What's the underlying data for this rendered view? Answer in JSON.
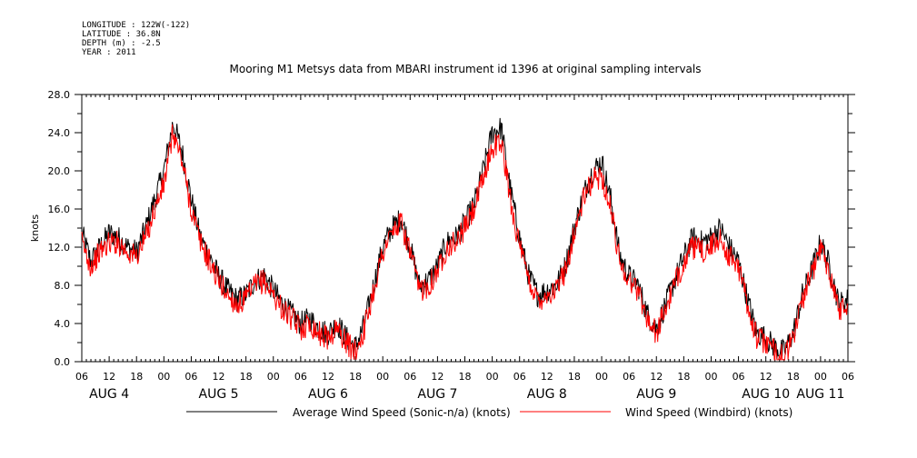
{
  "header": {
    "meta_lines": [
      "LONGITUDE : 122W(-122)",
      "LATITUDE : 36.8N",
      "DEPTH (m) : -2.5",
      "YEAR : 2011"
    ],
    "title": "Mooring M1 Metsys data from MBARI instrument id 1396 at original sampling intervals"
  },
  "chart_data": {
    "type": "line",
    "title": "Mooring M1 Metsys data from MBARI instrument id 1396 at original sampling intervals",
    "ylabel": "knots",
    "xlabel": "",
    "ylim": [
      0,
      28
    ],
    "yticks": [
      "0.0",
      "4.0",
      "8.0",
      "12.0",
      "16.0",
      "20.0",
      "24.0",
      "28.0"
    ],
    "xlim_hours": [
      "2011-08-04T06:00",
      "2011-08-11T06:00"
    ],
    "hour_labels": [
      "06",
      "12",
      "18",
      "00",
      "06",
      "12",
      "18",
      "00",
      "06",
      "12",
      "18",
      "00",
      "06",
      "12",
      "18",
      "00",
      "06",
      "12",
      "18",
      "00",
      "06",
      "12",
      "18",
      "00",
      "06",
      "12",
      "18",
      "00",
      "06"
    ],
    "day_labels": [
      "AUG 4",
      "AUG 5",
      "AUG 6",
      "AUG 7",
      "AUG 8",
      "AUG 9",
      "AUG 10",
      "AUG 11"
    ],
    "grid": false,
    "legend": "bottom",
    "x": [
      "2011-08-04T06:00",
      "2011-08-04T08:00",
      "2011-08-04T10:00",
      "2011-08-04T12:00",
      "2011-08-04T14:00",
      "2011-08-04T16:00",
      "2011-08-04T18:00",
      "2011-08-04T20:00",
      "2011-08-04T22:00",
      "2011-08-05T00:00",
      "2011-08-05T02:00",
      "2011-08-05T04:00",
      "2011-08-05T06:00",
      "2011-08-05T08:00",
      "2011-08-05T10:00",
      "2011-08-05T12:00",
      "2011-08-05T14:00",
      "2011-08-05T16:00",
      "2011-08-05T18:00",
      "2011-08-05T20:00",
      "2011-08-05T22:00",
      "2011-08-06T00:00",
      "2011-08-06T02:00",
      "2011-08-06T04:00",
      "2011-08-06T06:00",
      "2011-08-06T08:00",
      "2011-08-06T10:00",
      "2011-08-06T12:00",
      "2011-08-06T14:00",
      "2011-08-06T16:00",
      "2011-08-06T18:00",
      "2011-08-06T20:00",
      "2011-08-06T22:00",
      "2011-08-07T00:00",
      "2011-08-07T02:00",
      "2011-08-07T04:00",
      "2011-08-07T06:00",
      "2011-08-07T08:00",
      "2011-08-07T10:00",
      "2011-08-07T12:00",
      "2011-08-07T14:00",
      "2011-08-07T16:00",
      "2011-08-07T18:00",
      "2011-08-07T20:00",
      "2011-08-07T22:00",
      "2011-08-08T00:00",
      "2011-08-08T02:00",
      "2011-08-08T04:00",
      "2011-08-08T06:00",
      "2011-08-08T08:00",
      "2011-08-08T10:00",
      "2011-08-08T12:00",
      "2011-08-08T14:00",
      "2011-08-08T16:00",
      "2011-08-08T18:00",
      "2011-08-08T20:00",
      "2011-08-08T22:00",
      "2011-08-09T00:00",
      "2011-08-09T02:00",
      "2011-08-09T04:00",
      "2011-08-09T06:00",
      "2011-08-09T08:00",
      "2011-08-09T10:00",
      "2011-08-09T12:00",
      "2011-08-09T14:00",
      "2011-08-09T16:00",
      "2011-08-09T18:00",
      "2011-08-09T20:00",
      "2011-08-09T22:00",
      "2011-08-10T00:00",
      "2011-08-10T02:00",
      "2011-08-10T04:00",
      "2011-08-10T06:00",
      "2011-08-10T08:00",
      "2011-08-10T10:00",
      "2011-08-10T12:00",
      "2011-08-10T14:00",
      "2011-08-10T16:00",
      "2011-08-10T18:00",
      "2011-08-10T20:00",
      "2011-08-10T22:00",
      "2011-08-11T00:00",
      "2011-08-11T02:00",
      "2011-08-11T04:00",
      "2011-08-11T06:00"
    ],
    "series": [
      {
        "name": "Average Wind Speed (Sonic-n/a) (knots)",
        "color": "#000000",
        "values": [
          13.5,
          10.5,
          12.0,
          13.5,
          13.0,
          12.0,
          11.5,
          14.0,
          17.0,
          20.0,
          25.0,
          22.0,
          17.0,
          13.0,
          11.0,
          9.0,
          7.5,
          6.5,
          7.0,
          8.5,
          9.0,
          7.5,
          6.0,
          5.0,
          4.0,
          4.5,
          3.5,
          3.0,
          4.0,
          2.5,
          1.5,
          4.0,
          8.0,
          12.0,
          14.0,
          15.0,
          12.0,
          8.0,
          8.5,
          10.0,
          12.5,
          13.0,
          14.5,
          16.5,
          20.0,
          24.0,
          24.5,
          18.0,
          13.0,
          9.0,
          7.0,
          7.5,
          8.0,
          10.0,
          14.0,
          17.5,
          20.0,
          21.0,
          17.0,
          11.0,
          9.0,
          8.0,
          5.0,
          3.5,
          6.0,
          8.5,
          11.0,
          13.0,
          12.5,
          13.0,
          14.0,
          12.0,
          10.5,
          6.5,
          3.0,
          2.5,
          1.5,
          1.0,
          3.0,
          7.0,
          9.5,
          12.5,
          10.0,
          6.0,
          6.5
        ]
      },
      {
        "name": "Wind Speed (Windbird) (knots)",
        "color": "#ff0000",
        "values": [
          12.5,
          10.0,
          11.5,
          12.5,
          12.5,
          11.5,
          11.0,
          13.0,
          16.0,
          18.5,
          24.0,
          21.0,
          16.0,
          12.5,
          10.5,
          8.5,
          7.0,
          6.0,
          6.5,
          8.0,
          8.5,
          7.0,
          5.5,
          4.5,
          3.5,
          4.0,
          3.0,
          2.5,
          3.5,
          2.0,
          1.0,
          3.5,
          7.5,
          11.5,
          13.5,
          14.5,
          11.5,
          7.5,
          8.0,
          9.5,
          12.0,
          12.5,
          14.0,
          16.0,
          19.0,
          22.5,
          23.0,
          17.0,
          12.0,
          8.5,
          6.5,
          7.0,
          7.5,
          9.5,
          13.5,
          17.0,
          19.0,
          19.5,
          16.0,
          10.5,
          8.5,
          7.5,
          4.5,
          3.0,
          5.5,
          8.0,
          10.5,
          12.0,
          11.5,
          12.0,
          13.0,
          11.0,
          10.0,
          6.0,
          2.5,
          2.0,
          1.0,
          0.5,
          2.5,
          6.5,
          9.0,
          12.0,
          9.5,
          5.5,
          6.0
        ]
      }
    ]
  }
}
